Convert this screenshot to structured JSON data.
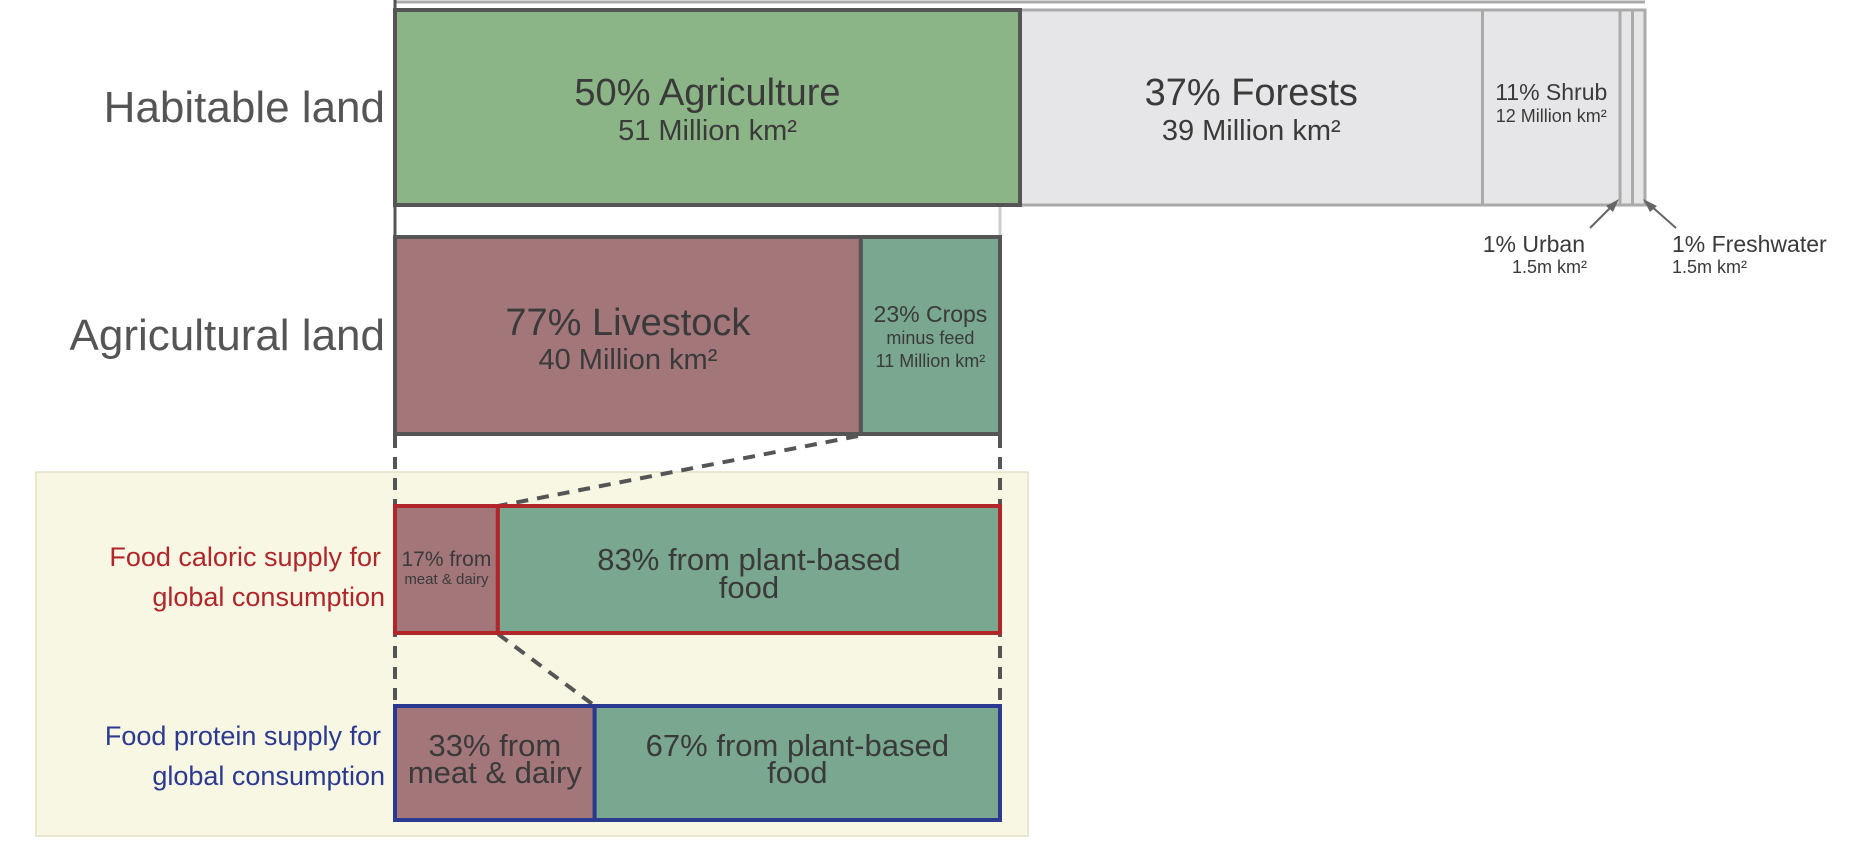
{
  "chart_data": {
    "type": "bar",
    "colors": {
      "agriculture": "#8cb587",
      "livestock": "#a3767a",
      "crops": "#7aa790",
      "non_agri": "#e6e6e8",
      "caloric_label": "#b0262b",
      "protein_label": "#2b3a8f",
      "panel_bg": "#f8f7e4"
    },
    "rows": [
      {
        "label": "Habitable land",
        "segments": [
          {
            "value": 50,
            "line1": "50% Agriculture",
            "line2": "51 Million km²",
            "color": "#8cb587"
          },
          {
            "value": 37,
            "line1": "37% Forests",
            "line2": "39 Million km²",
            "color": "#e6e6e8"
          },
          {
            "value": 11,
            "line1": "11% Shrub",
            "line2": "12 Million km²",
            "color": "#e6e6e8"
          },
          {
            "value": 1,
            "line1": "1% Urban",
            "line2": "1.5m km²",
            "color": "#e6e6e8"
          },
          {
            "value": 1,
            "line1": "1% Freshwater",
            "line2": "1.5m km²",
            "color": "#e6e6e8"
          }
        ]
      },
      {
        "label": "Agricultural land",
        "segments": [
          {
            "value": 77,
            "line1": "77% Livestock",
            "line2": "40 Million km²",
            "color": "#a3767a"
          },
          {
            "value": 23,
            "line1": "23% Crops",
            "line2": "minus feed",
            "line3": "11 Million km²",
            "color": "#7aa790"
          }
        ]
      },
      {
        "label_line1": "Food caloric supply for",
        "label_line2": "global consumption",
        "segments": [
          {
            "value": 17,
            "line1": "17% from",
            "line2": "meat & dairy",
            "color": "#a3767a"
          },
          {
            "value": 83,
            "line1": "83% from plant-based",
            "line2": "food",
            "color": "#7aa790"
          }
        ]
      },
      {
        "label_line1": "Food protein supply for",
        "label_line2": "global consumption",
        "segments": [
          {
            "value": 33,
            "line1": "33% from",
            "line2": "meat & dairy",
            "color": "#a3767a"
          },
          {
            "value": 67,
            "line1": "67% from plant-based",
            "line2": "food",
            "color": "#7aa790"
          }
        ]
      }
    ]
  }
}
